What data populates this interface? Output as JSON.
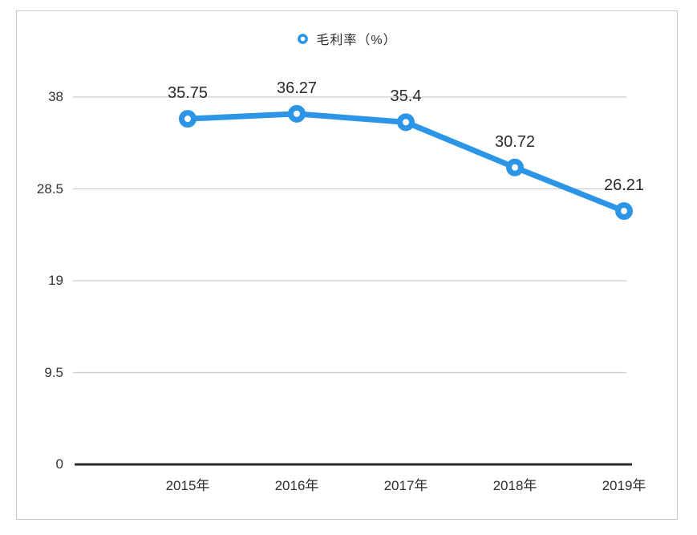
{
  "chart_data": {
    "type": "line",
    "title": "",
    "legend": {
      "label": "毛利率（%）",
      "position": "top",
      "marker": "hollow-circle"
    },
    "categories": [
      "2015年",
      "2016年",
      "2017年",
      "2018年",
      "2019年"
    ],
    "series": [
      {
        "name": "毛利率（%）",
        "values": [
          35.75,
          36.27,
          35.4,
          30.72,
          26.21
        ]
      }
    ],
    "data_labels": [
      "35.75",
      "36.27",
      "35.4",
      "30.72",
      "26.21"
    ],
    "y_ticks": [
      {
        "label": "38",
        "value": 38
      },
      {
        "label": "28.5",
        "value": 28.5
      },
      {
        "label": "19",
        "value": 19
      },
      {
        "label": "9.5",
        "value": 9.5
      },
      {
        "label": "0",
        "value": 0
      }
    ],
    "ylim": [
      0,
      38
    ],
    "grid": "horizontal",
    "legend_position": "top-center",
    "colors": {
      "line": "#2d95e5",
      "marker_fill": "#ffffff",
      "grid": "#cccccc",
      "axis": "#2b2b2b",
      "text": "#2d2d2d",
      "frame_border": "#c9c9c9",
      "background": "#ffffff"
    }
  }
}
